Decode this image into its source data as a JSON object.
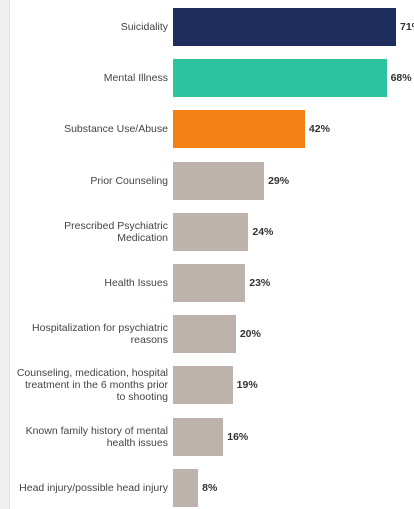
{
  "chart_data": {
    "type": "hbar",
    "categories": [
      "Suicidality",
      "Mental Illness",
      "Substance Use/Abuse",
      "Prior Counseling",
      "Prescribed Psychiatric Medication",
      "Health Issues",
      "Hospitalization for psychiatric reasons",
      "Counseling, medication, hospital treatment in the 6 months prior to shooting",
      "Known family history of mental health issues",
      "Head injury/possible head injury"
    ],
    "values": [
      71,
      68,
      42,
      29,
      24,
      23,
      20,
      19,
      16,
      8
    ],
    "value_labels": [
      "71%",
      "68%",
      "42%",
      "29%",
      "24%",
      "23%",
      "20%",
      "19%",
      "16%",
      "8%"
    ],
    "colors": [
      "#1f2d5e",
      "#2cc3a0",
      "#f28012",
      "#bdb3ac",
      "#bdb3ac",
      "#bdb3ac",
      "#bdb3ac",
      "#bdb3ac",
      "#bdb3ac",
      "#bdb3ac"
    ],
    "xlim": [
      0,
      71
    ]
  }
}
